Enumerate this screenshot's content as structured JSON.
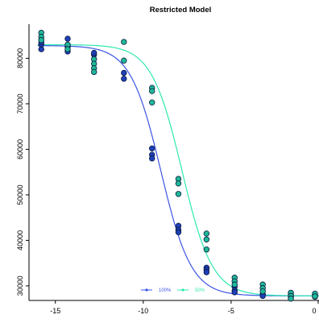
{
  "chart_data": {
    "type": "scatter",
    "title": "Restricted Model",
    "xlabel": "",
    "ylabel": "",
    "xlim": [
      -16.5,
      0
    ],
    "ylim": [
      26800,
      87500
    ],
    "x_ticks": [
      -15,
      -10,
      -5,
      0
    ],
    "x_tick_labels": [
      "-15",
      "-10",
      "-5",
      "0"
    ],
    "y_ticks": [
      30000,
      40000,
      50000,
      60000,
      70000,
      80000
    ],
    "y_tick_labels": [
      "30000",
      "40000",
      "50000",
      "60000",
      "70000",
      "80000"
    ],
    "grid": false,
    "legend": {
      "placement": "bottom-center",
      "entries": [
        {
          "label": "100%",
          "color": "#3b55e6"
        },
        {
          "label": "50%",
          "color": "#2ee8b0"
        }
      ]
    },
    "series": [
      {
        "name": "100%",
        "color": "#3b55e6",
        "marker_fill": "#1f3fb8",
        "curve": {
          "bottom": 27800,
          "top": 82800,
          "ec50": -9.0,
          "slope": 0.75
        },
        "points": [
          {
            "x": -15.8,
            "y": 82000
          },
          {
            "x": -15.8,
            "y": 83000
          },
          {
            "x": -15.8,
            "y": 83500
          },
          {
            "x": -14.3,
            "y": 84300
          },
          {
            "x": -14.3,
            "y": 82500
          },
          {
            "x": -14.3,
            "y": 81500
          },
          {
            "x": -12.8,
            "y": 80800
          },
          {
            "x": -12.8,
            "y": 81200
          },
          {
            "x": -11.1,
            "y": 76800
          },
          {
            "x": -11.1,
            "y": 75500
          },
          {
            "x": -9.5,
            "y": 60200
          },
          {
            "x": -9.5,
            "y": 58800
          },
          {
            "x": -9.5,
            "y": 58000
          },
          {
            "x": -8.0,
            "y": 43200
          },
          {
            "x": -8.0,
            "y": 42300
          },
          {
            "x": -8.0,
            "y": 41800
          },
          {
            "x": -6.4,
            "y": 34000
          },
          {
            "x": -6.4,
            "y": 33500
          },
          {
            "x": -6.4,
            "y": 33000
          },
          {
            "x": -4.8,
            "y": 29800
          },
          {
            "x": -4.8,
            "y": 29000
          },
          {
            "x": -4.8,
            "y": 28600
          },
          {
            "x": -3.2,
            "y": 28200
          },
          {
            "x": -3.2,
            "y": 27800
          },
          {
            "x": -1.6,
            "y": 28000
          },
          {
            "x": -1.6,
            "y": 27600
          },
          {
            "x": 0.0,
            "y": 28000
          },
          {
            "x": 0.0,
            "y": 27600
          }
        ]
      },
      {
        "name": "50%",
        "color": "#2ee8b0",
        "marker_fill": "#1fb896",
        "curve": {
          "bottom": 27800,
          "top": 83000,
          "ec50": -7.8,
          "slope": 0.75
        },
        "points": [
          {
            "x": -15.8,
            "y": 85600
          },
          {
            "x": -15.8,
            "y": 84700
          },
          {
            "x": -15.8,
            "y": 84000
          },
          {
            "x": -14.3,
            "y": 83000
          },
          {
            "x": -14.3,
            "y": 82000
          },
          {
            "x": -12.8,
            "y": 79800
          },
          {
            "x": -12.8,
            "y": 78800
          },
          {
            "x": -12.8,
            "y": 77800
          },
          {
            "x": -12.8,
            "y": 77000
          },
          {
            "x": -11.1,
            "y": 83600
          },
          {
            "x": -11.1,
            "y": 79500
          },
          {
            "x": -9.5,
            "y": 73500
          },
          {
            "x": -9.5,
            "y": 72800
          },
          {
            "x": -9.5,
            "y": 70300
          },
          {
            "x": -8.0,
            "y": 53500
          },
          {
            "x": -8.0,
            "y": 52500
          },
          {
            "x": -8.0,
            "y": 50200
          },
          {
            "x": -6.4,
            "y": 41500
          },
          {
            "x": -6.4,
            "y": 40200
          },
          {
            "x": -6.4,
            "y": 38000
          },
          {
            "x": -4.8,
            "y": 31800
          },
          {
            "x": -4.8,
            "y": 31000
          },
          {
            "x": -4.8,
            "y": 30300
          },
          {
            "x": -3.2,
            "y": 30300
          },
          {
            "x": -3.2,
            "y": 29500
          },
          {
            "x": -3.2,
            "y": 28800
          },
          {
            "x": -1.6,
            "y": 28500
          },
          {
            "x": -1.6,
            "y": 27800
          },
          {
            "x": -1.6,
            "y": 27200
          },
          {
            "x": 0.0,
            "y": 28300
          },
          {
            "x": 0.0,
            "y": 27700
          }
        ]
      }
    ]
  }
}
